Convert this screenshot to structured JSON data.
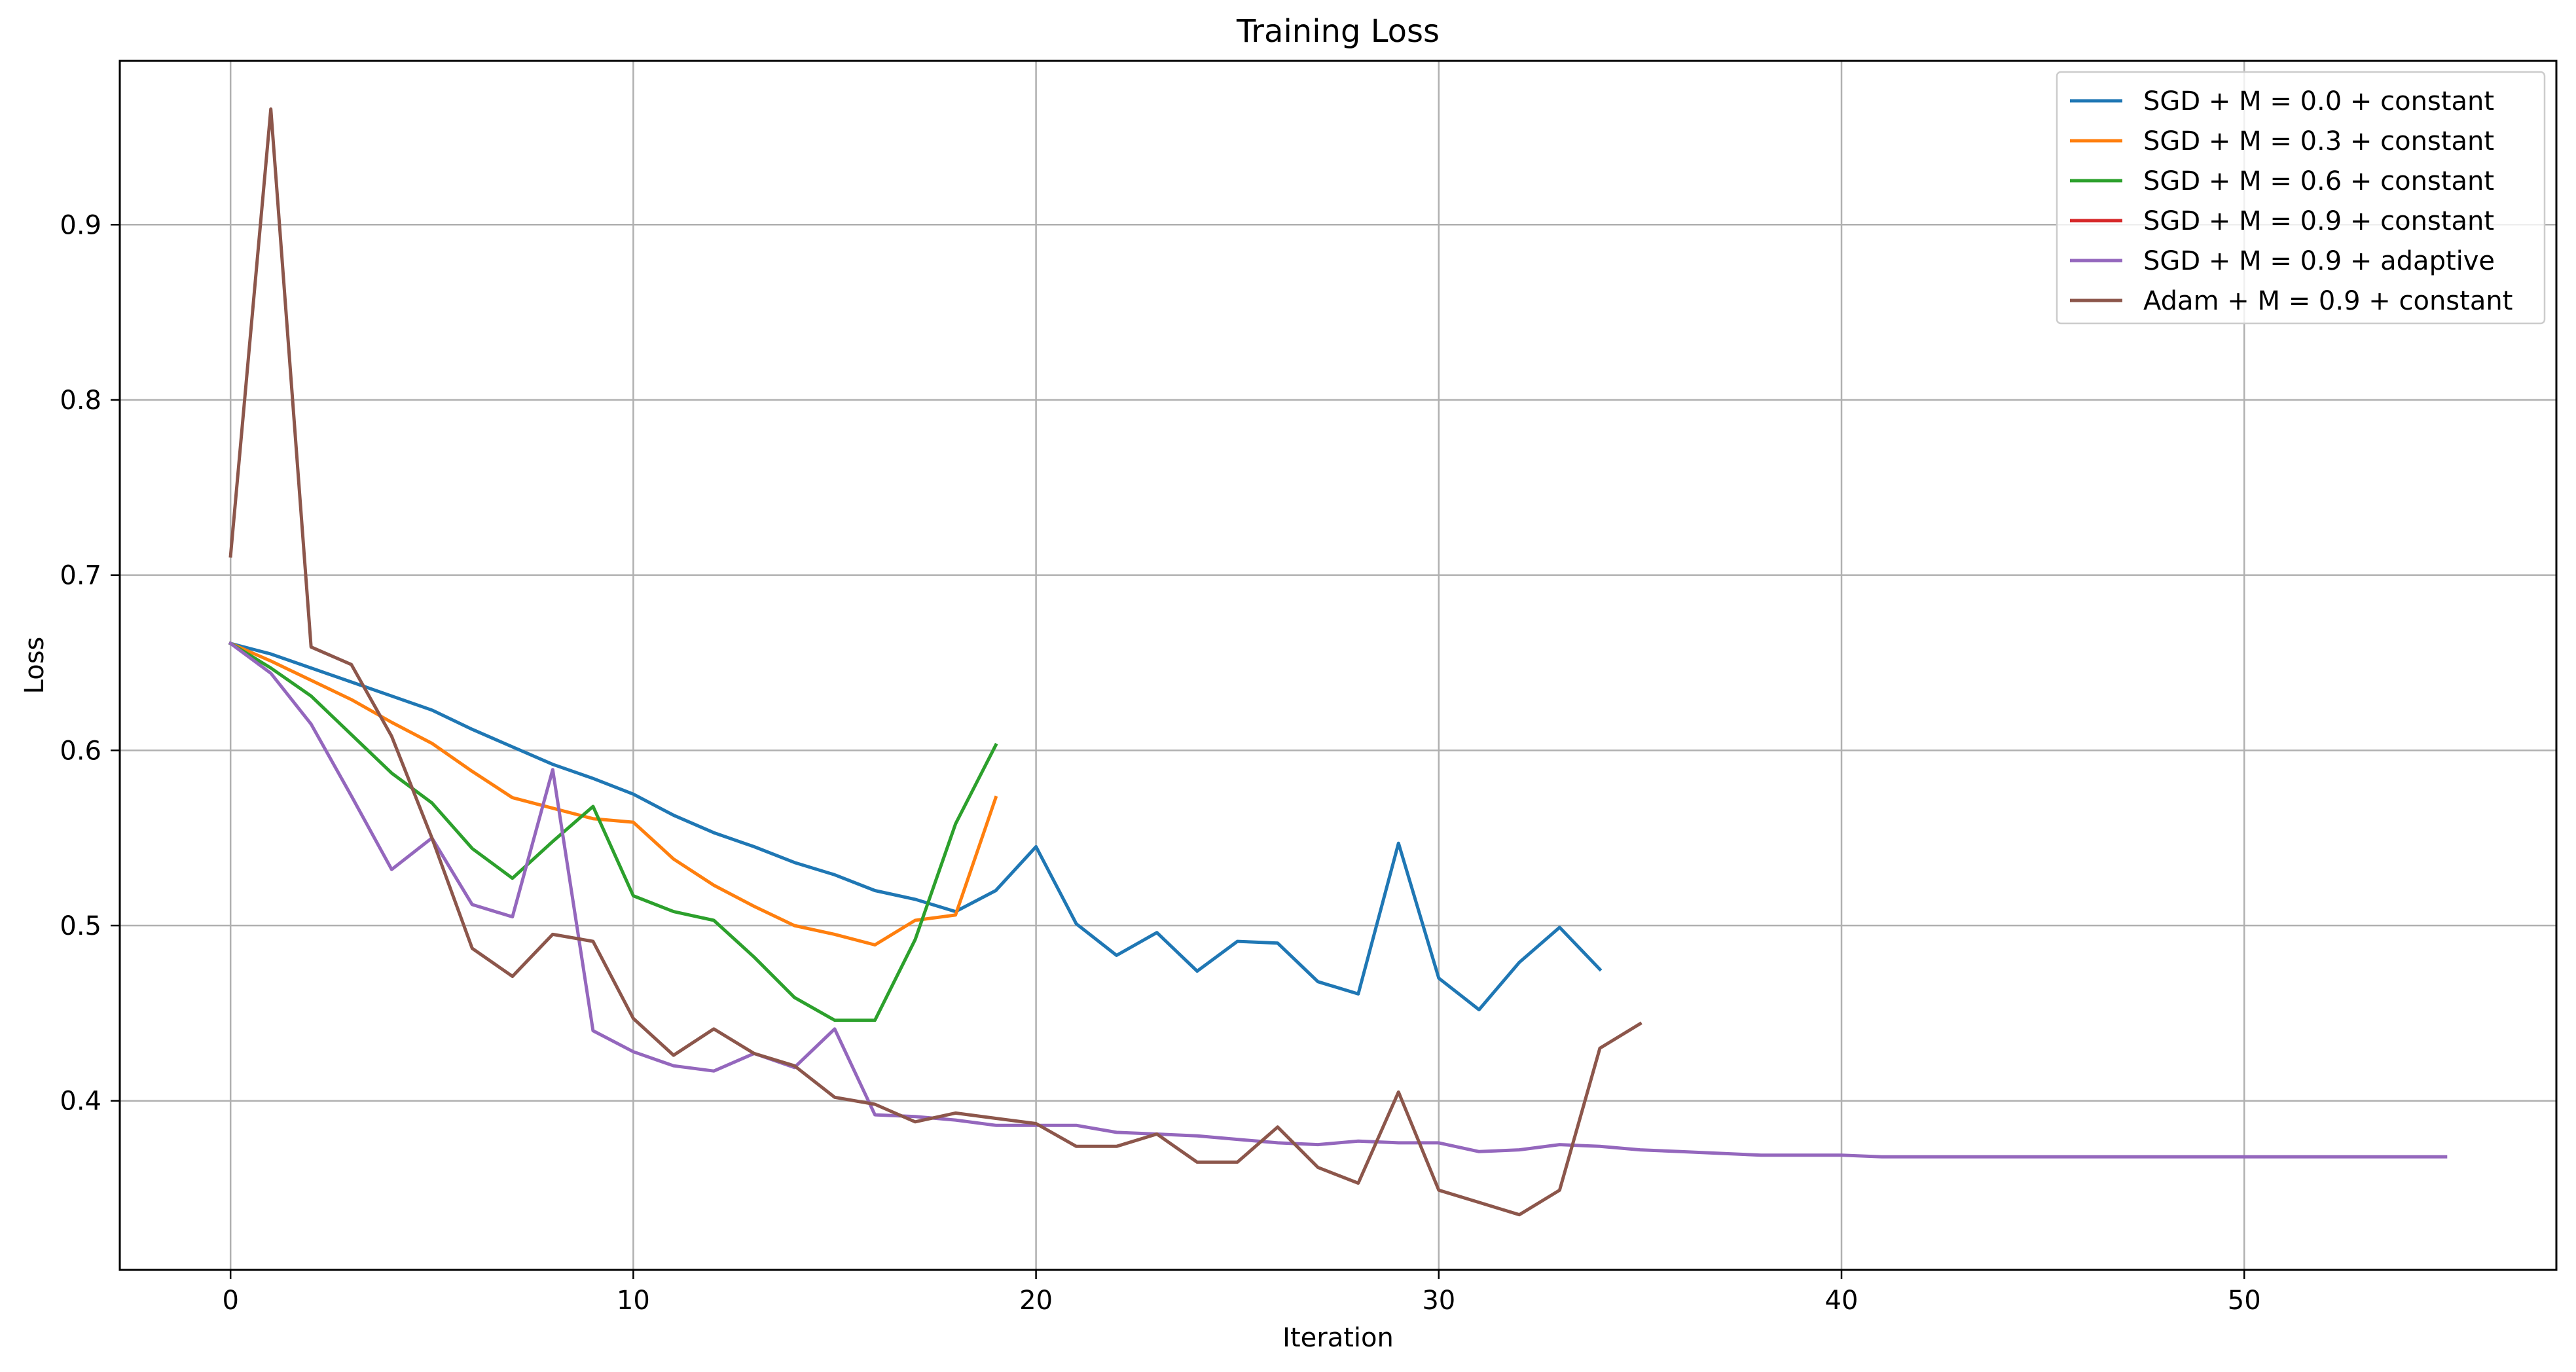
{
  "chart_data": {
    "type": "line",
    "title": "Training Loss",
    "xlabel": "Iteration",
    "ylabel": "Loss",
    "xlim": [
      -2.75,
      57.75
    ],
    "ylim": [
      0.3035,
      0.9935
    ],
    "xticks": [
      0,
      10,
      20,
      30,
      40,
      50
    ],
    "yticks": [
      0.4,
      0.5,
      0.6,
      0.7,
      0.8,
      0.9
    ],
    "xtick_labels": [
      "0",
      "10",
      "20",
      "30",
      "40",
      "50"
    ],
    "ytick_labels": [
      "0.4",
      "0.5",
      "0.6",
      "0.7",
      "0.8",
      "0.9"
    ],
    "grid": true,
    "legend_position": "top-right",
    "series": [
      {
        "name": "SGD + M = 0.0 + constant",
        "color": "#1f77b4",
        "y": [
          0.661,
          0.655,
          0.647,
          0.639,
          0.631,
          0.623,
          0.612,
          0.602,
          0.592,
          0.584,
          0.575,
          0.563,
          0.553,
          0.545,
          0.536,
          0.529,
          0.52,
          0.515,
          0.508,
          0.52,
          0.545,
          0.501,
          0.483,
          0.496,
          0.474,
          0.491,
          0.49,
          0.468,
          0.461,
          0.547,
          0.47,
          0.452,
          0.479,
          0.499,
          0.475
        ]
      },
      {
        "name": "SGD + M = 0.3 + constant",
        "color": "#ff7f0e",
        "y": [
          0.661,
          0.651,
          0.64,
          0.629,
          0.616,
          0.604,
          0.588,
          0.573,
          0.567,
          0.561,
          0.559,
          0.538,
          0.523,
          0.511,
          0.5,
          0.495,
          0.489,
          0.503,
          0.506,
          0.573
        ]
      },
      {
        "name": "SGD + M = 0.6 + constant",
        "color": "#2ca02c",
        "y": [
          0.661,
          0.647,
          0.631,
          0.609,
          0.587,
          0.57,
          0.544,
          0.527,
          0.548,
          0.568,
          0.517,
          0.508,
          0.503,
          0.482,
          0.459,
          0.446,
          0.446,
          0.492,
          0.558,
          0.603
        ]
      },
      {
        "name": "SGD + M = 0.9 + constant",
        "color": "#d62728",
        "y": []
      },
      {
        "name": "SGD + M = 0.9 + adaptive",
        "color": "#9467bd",
        "y": [
          0.661,
          0.644,
          0.615,
          0.574,
          0.532,
          0.55,
          0.512,
          0.505,
          0.589,
          0.44,
          0.428,
          0.42,
          0.417,
          0.427,
          0.419,
          0.441,
          0.392,
          0.391,
          0.389,
          0.386,
          0.386,
          0.386,
          0.382,
          0.381,
          0.38,
          0.378,
          0.376,
          0.375,
          0.377,
          0.376,
          0.376,
          0.371,
          0.372,
          0.375,
          0.374,
          0.372,
          0.371,
          0.37,
          0.369,
          0.369,
          0.369,
          0.368,
          0.368,
          0.368,
          0.368,
          0.368,
          0.368,
          0.368,
          0.368,
          0.368,
          0.368,
          0.368,
          0.368,
          0.368,
          0.368,
          0.368
        ]
      },
      {
        "name": "Adam + M = 0.9 + constant",
        "color": "#8c564b",
        "y": [
          0.711,
          0.966,
          0.659,
          0.649,
          0.608,
          0.55,
          0.487,
          0.471,
          0.495,
          0.491,
          0.447,
          0.426,
          0.441,
          0.427,
          0.42,
          0.402,
          0.398,
          0.388,
          0.393,
          0.39,
          0.387,
          0.374,
          0.374,
          0.381,
          0.365,
          0.365,
          0.385,
          0.362,
          0.353,
          0.405,
          0.349,
          0.342,
          0.335,
          0.349,
          0.43,
          0.444
        ]
      }
    ]
  }
}
